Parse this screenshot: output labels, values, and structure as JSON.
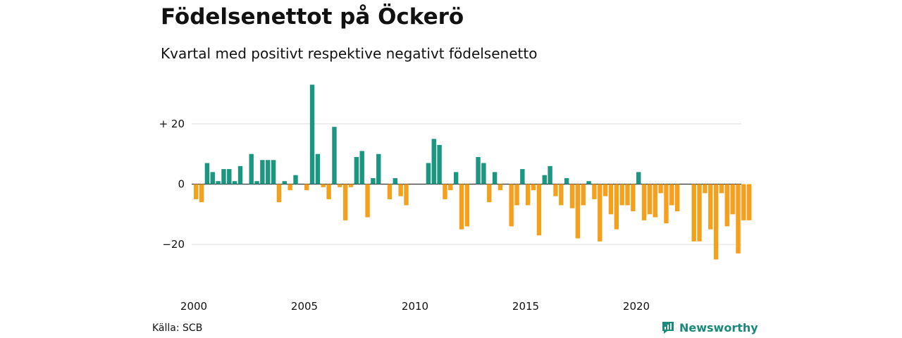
{
  "title": "Födelsenettot på Öckerö",
  "subtitle": "Kvartal med positivt respektive negativt födelsenetto",
  "source": "Källa: SCB",
  "brand": {
    "name": "Newsworthy",
    "icon": "bar-chart-icon",
    "color": "#1b8a7a"
  },
  "chart_data": {
    "type": "bar",
    "x_start": "2000 Q1",
    "ylim": [
      -27,
      35
    ],
    "y_ticks": [
      {
        "value": 20,
        "label": "+ 20"
      },
      {
        "value": 0,
        "label": "0"
      },
      {
        "value": -20,
        "label": "−20"
      }
    ],
    "x_ticks": [
      {
        "year": 2000,
        "label": "2000"
      },
      {
        "year": 2005,
        "label": "2005"
      },
      {
        "year": 2010,
        "label": "2010"
      },
      {
        "year": 2015,
        "label": "2015"
      },
      {
        "year": 2020,
        "label": "2020"
      }
    ],
    "colors": {
      "positive": "#1b9681",
      "negative": "#f5a01d",
      "grid": "#dddddd"
    },
    "grid": true,
    "values": [
      -5,
      -6,
      7,
      4,
      1,
      5,
      5,
      1,
      6,
      0,
      10,
      1,
      8,
      8,
      8,
      -6,
      1,
      -2,
      3,
      0,
      -2,
      33,
      10,
      -1,
      -5,
      19,
      -1,
      -12,
      -1,
      9,
      11,
      -11,
      2,
      10,
      0,
      -5,
      2,
      -4,
      -7,
      0,
      0,
      0,
      7,
      15,
      13,
      -5,
      -2,
      4,
      -15,
      -14,
      0,
      9,
      7,
      -6,
      4,
      -2,
      0,
      -14,
      -7,
      5,
      -7,
      -2,
      -17,
      3,
      6,
      -4,
      -7,
      2,
      -8,
      -18,
      -7,
      1,
      -5,
      -19,
      -4,
      -10,
      -15,
      -7,
      -7,
      -9,
      4,
      -12,
      -10,
      -11,
      -3,
      -13,
      -7,
      -9,
      0,
      0,
      -19,
      -19,
      -3,
      -15,
      -25,
      -3,
      -14,
      -10,
      -23,
      -12,
      -12
    ]
  }
}
